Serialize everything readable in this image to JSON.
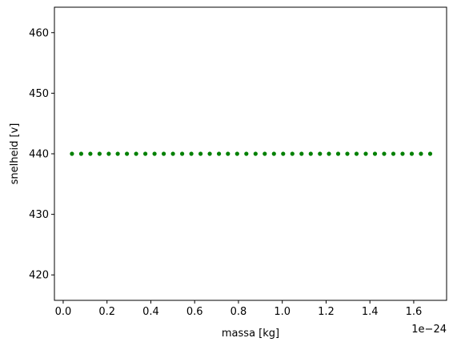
{
  "chart_data": {
    "type": "scatter",
    "title": "",
    "xlabel": "massa [kg]",
    "ylabel": "snelheid [v]",
    "x_offset_label": "1e−24",
    "xlim": [
      -0.04,
      1.75
    ],
    "ylim": [
      415.8,
      464.2
    ],
    "x_ticks": [
      0.0,
      0.2,
      0.4,
      0.6,
      0.8,
      1.0,
      1.2,
      1.4,
      1.6
    ],
    "x_tick_labels": [
      "0.0",
      "0.2",
      "0.4",
      "0.6",
      "0.8",
      "1.0",
      "1.2",
      "1.4",
      "1.6"
    ],
    "y_ticks": [
      420,
      430,
      440,
      450,
      460
    ],
    "y_tick_labels": [
      "420",
      "430",
      "440",
      "450",
      "460"
    ],
    "grid": false,
    "legend": "none",
    "marker_color": "#008000",
    "series": [
      {
        "x": [
          0.04,
          0.082,
          0.124,
          0.166,
          0.208,
          0.249,
          0.291,
          0.333,
          0.375,
          0.417,
          0.459,
          0.501,
          0.543,
          0.585,
          0.627,
          0.669,
          0.711,
          0.752,
          0.794,
          0.836,
          0.878,
          0.92,
          0.962,
          1.004,
          1.046,
          1.088,
          1.13,
          1.172,
          1.213,
          1.255,
          1.297,
          1.339,
          1.381,
          1.423,
          1.465,
          1.507,
          1.549,
          1.591,
          1.633,
          1.675
        ],
        "y": [
          440,
          440,
          440,
          440,
          440,
          440,
          440,
          440,
          440,
          440,
          440,
          440,
          440,
          440,
          440,
          440,
          440,
          440,
          440,
          440,
          440,
          440,
          440,
          440,
          440,
          440,
          440,
          440,
          440,
          440,
          440,
          440,
          440,
          440,
          440,
          440,
          440,
          440,
          440,
          440
        ]
      }
    ]
  }
}
